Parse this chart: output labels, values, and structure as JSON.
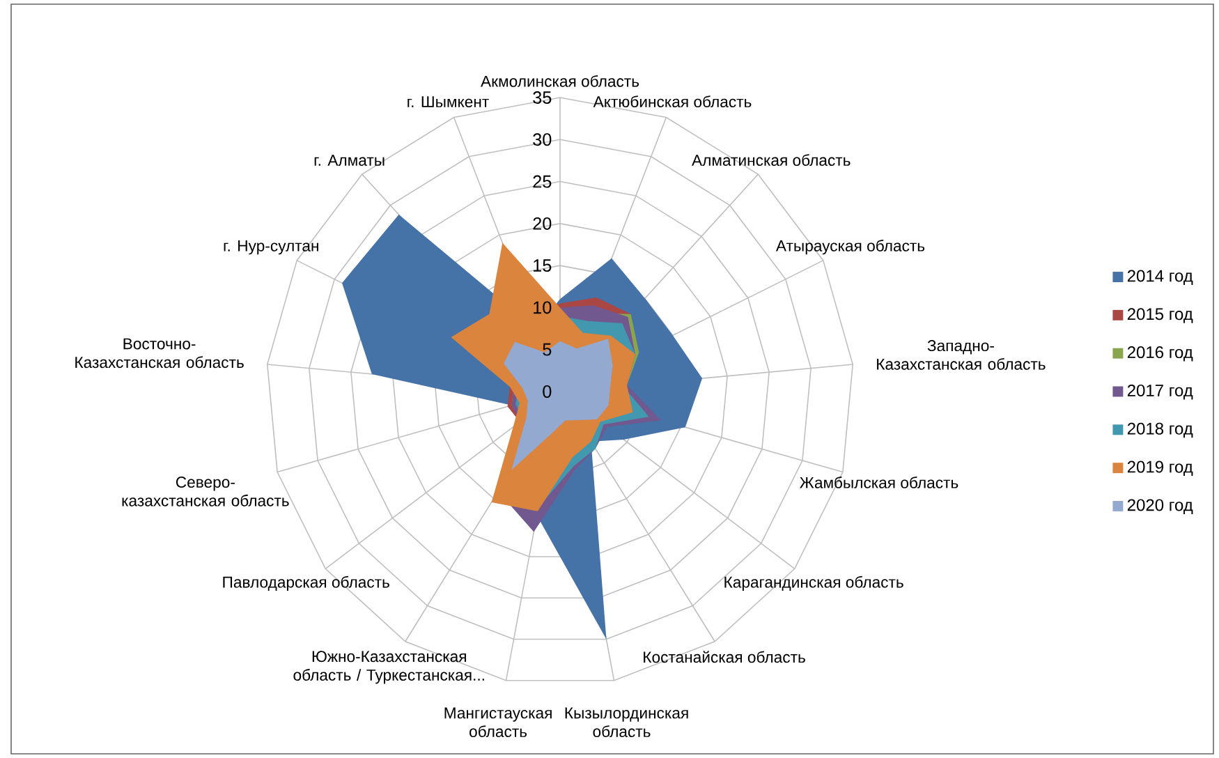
{
  "chart_data": {
    "type": "radar",
    "categories": [
      "Акмолинская область",
      "Актюбинская область",
      "Алматинская область",
      "Атырауская область",
      "Западно-Казахстанская область",
      "Жамбылская область",
      "Карагандинская область",
      "Костанайская область",
      "Кызылординская область",
      "Мангистауская область",
      "Южно-Казахстанская область / Туркестанская...",
      "Павлодарская область",
      "Северо-казахстанская область",
      "Восточно-Казахстанская область",
      "г. Нур-султан",
      "г. Алматы",
      "г. Шымкент"
    ],
    "series": [
      {
        "name": "2014 год",
        "color": "#4572a7",
        "values": [
          11,
          17,
          15,
          15,
          17,
          15.5,
          9.5,
          7,
          30,
          15,
          14,
          6,
          6,
          22.5,
          29,
          28.5,
          8
        ]
      },
      {
        "name": "2015 год",
        "color": "#aa4643",
        "values": [
          10.5,
          12,
          12.5,
          10,
          8,
          12,
          7,
          7.5,
          9,
          14,
          14,
          6,
          6.5,
          6,
          8,
          9,
          9
        ]
      },
      {
        "name": "2016 год",
        "color": "#89a54e",
        "values": [
          9,
          10,
          12.5,
          10.5,
          8,
          11,
          7,
          7,
          9,
          14,
          14,
          5.5,
          6,
          5.5,
          7.5,
          8,
          8
        ]
      },
      {
        "name": "2017 год",
        "color": "#71588f",
        "values": [
          10,
          11,
          12,
          10,
          8,
          12.5,
          7,
          8,
          9.5,
          17,
          14,
          6,
          6,
          5.5,
          8,
          8.5,
          9
        ]
      },
      {
        "name": "2018 год",
        "color": "#4198af",
        "values": [
          9,
          9,
          11,
          10,
          7.5,
          11,
          6.5,
          8,
          9,
          14,
          14,
          5.5,
          5.5,
          5,
          7,
          8,
          8
        ]
      },
      {
        "name": "2019 год",
        "color": "#db843d",
        "values": [
          10,
          7.5,
          9,
          10,
          8,
          9,
          6,
          7,
          8,
          14.5,
          15.5,
          7,
          5,
          6,
          14.5,
          12.5,
          19
        ]
      },
      {
        "name": "2020 год",
        "color": "#93a9cf",
        "values": [
          6,
          5.5,
          8.5,
          7,
          6,
          6,
          5.5,
          4,
          3.5,
          5,
          11,
          5,
          4,
          4.5,
          7.5,
          8,
          5
        ]
      }
    ],
    "ylim": [
      0,
      35
    ],
    "yticks": [
      0,
      5,
      10,
      15,
      20,
      25,
      30,
      35
    ],
    "grid": true,
    "legend": "right"
  }
}
